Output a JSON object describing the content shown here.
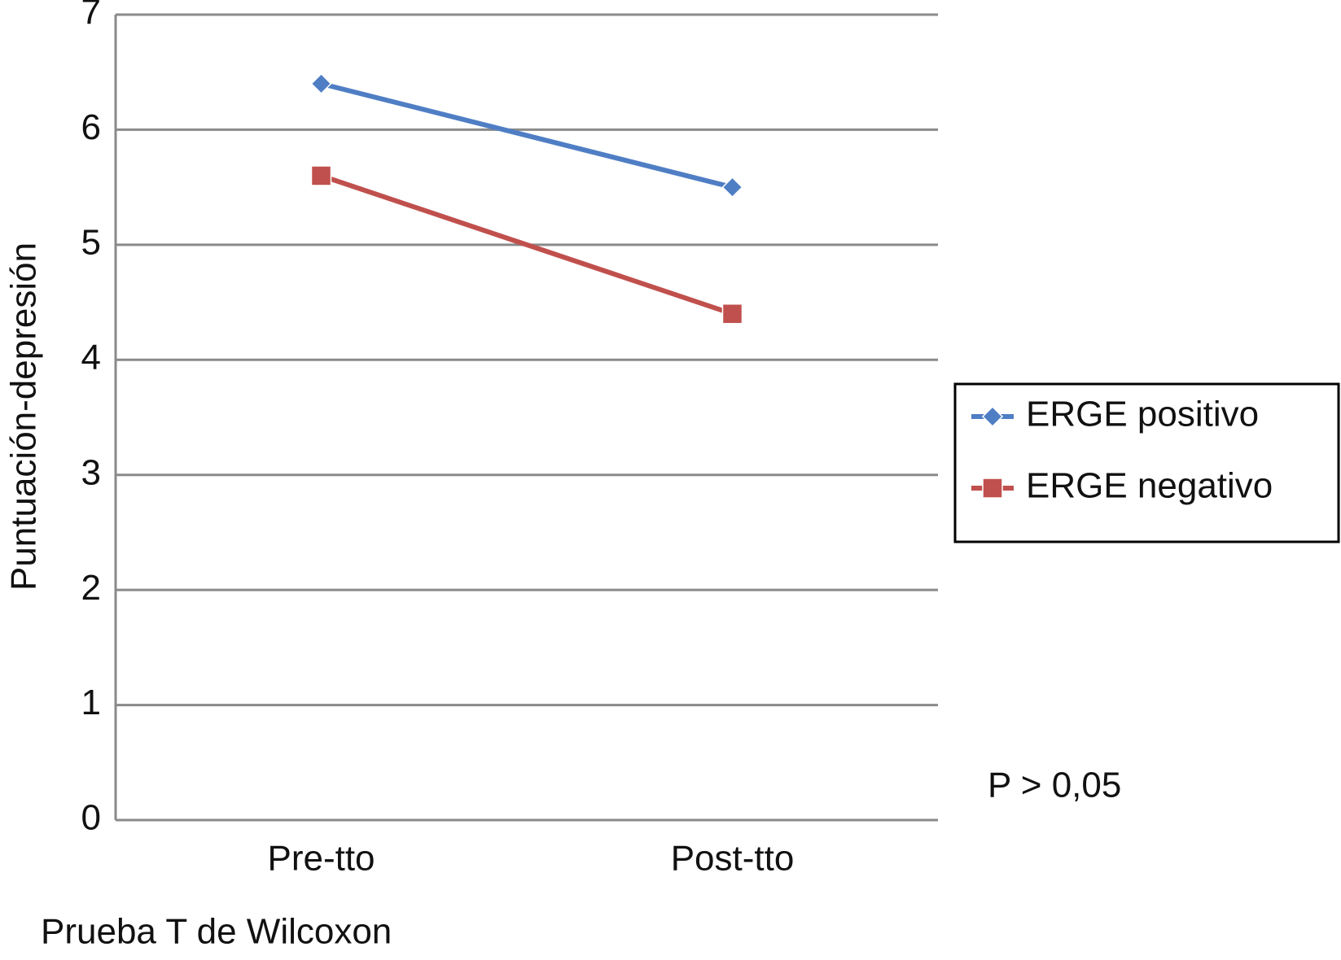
{
  "chart_data": {
    "type": "line",
    "y_label": "Puntuación-depresión",
    "categories": [
      "Pre-tto",
      "Post-tto"
    ],
    "series": [
      {
        "name": "ERGE positivo",
        "color": "#4f7ec4",
        "marker": "diamond",
        "values": [
          6.4,
          5.5
        ]
      },
      {
        "name": "ERGE negativo",
        "color": "#c0504d",
        "marker": "square",
        "values": [
          5.6,
          4.4
        ]
      }
    ],
    "ylim": [
      0,
      7
    ],
    "yticks": [
      0,
      1,
      2,
      3,
      4,
      5,
      6,
      7
    ],
    "grid": true,
    "legend": "right",
    "annotation": "P > 0,05",
    "footnote": "Prueba T de Wilcoxon"
  }
}
